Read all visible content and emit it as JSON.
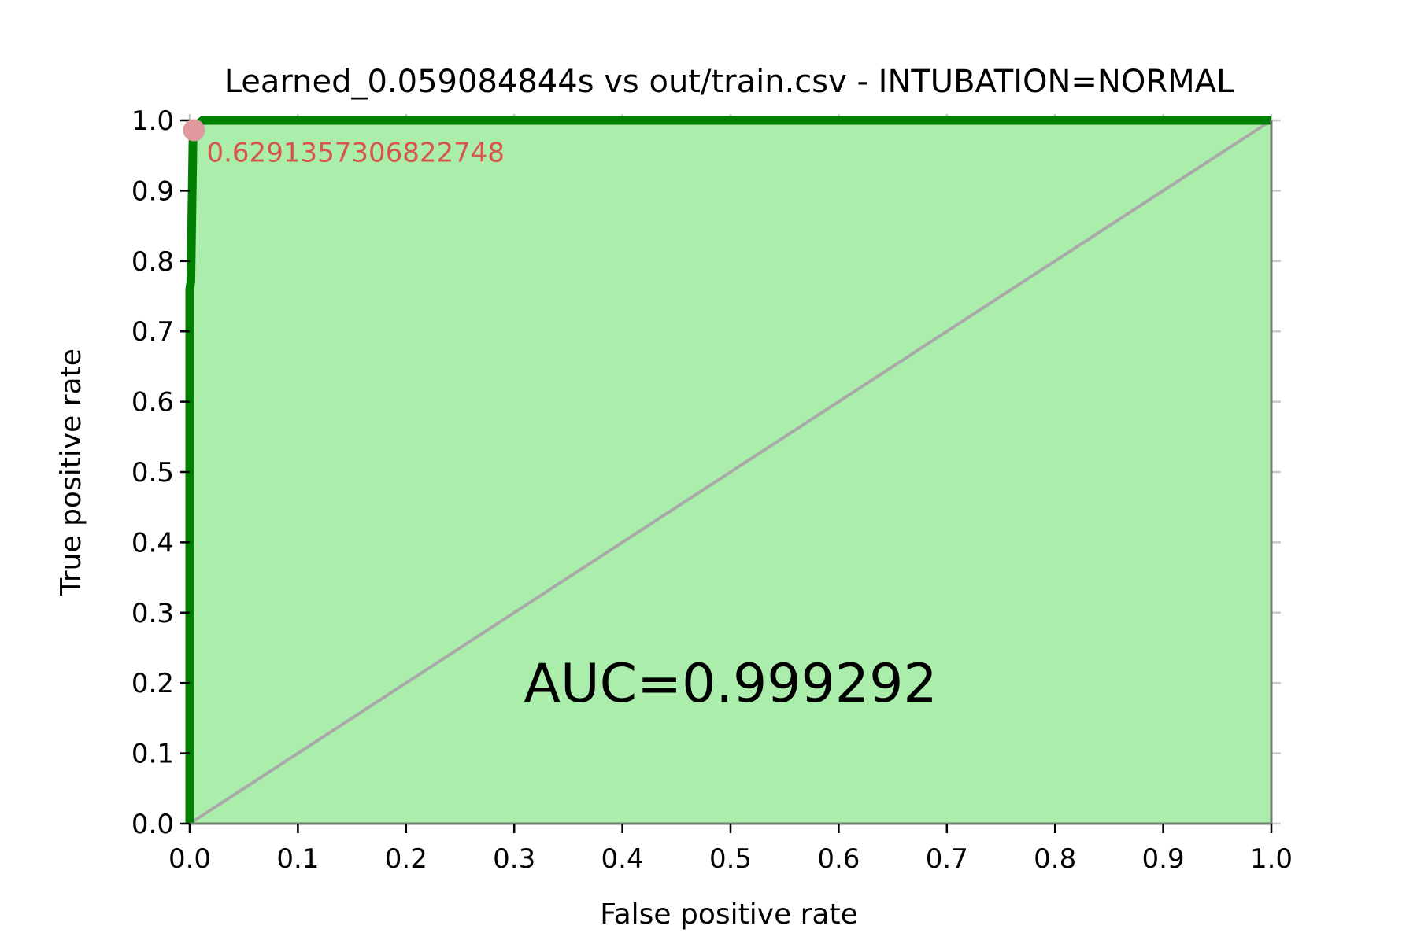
{
  "chart_data": {
    "type": "line",
    "title": "Learned_0.059084844s vs out/train.csv - INTUBATION=NORMAL",
    "xlabel": "False positive rate",
    "ylabel": "True positive rate",
    "xlim": [
      0,
      1
    ],
    "ylim": [
      0,
      1
    ],
    "grid": true,
    "x_ticks": [
      "0.0",
      "0.1",
      "0.2",
      "0.3",
      "0.4",
      "0.5",
      "0.6",
      "0.7",
      "0.8",
      "0.9",
      "1.0"
    ],
    "y_ticks": [
      "0.0",
      "0.1",
      "0.2",
      "0.3",
      "0.4",
      "0.5",
      "0.6",
      "0.7",
      "0.8",
      "0.9",
      "1.0"
    ],
    "series": [
      {
        "x": [
          0.0,
          0.0,
          0.001,
          0.003,
          0.004,
          0.004,
          0.012,
          0.015,
          1.0
        ],
        "y": [
          0.0,
          0.76,
          0.77,
          0.97,
          0.986,
          0.99,
          1.0,
          1.0,
          1.0
        ]
      }
    ],
    "diagonal": {
      "x": [
        0,
        1
      ],
      "y": [
        0,
        1
      ]
    },
    "marked_point": {
      "x": 0.004,
      "y": 0.986,
      "label": "0.6291357306822748"
    },
    "auc_text": "AUC=0.999292",
    "auc_position": {
      "x": 0.5,
      "y": 0.2
    },
    "colors": {
      "curve": "#008000",
      "fill": "#abedab",
      "diagonal": "#a9a9a9",
      "grid": "#c8c8c8",
      "point": "#e09a9e",
      "point_label": "#d9534f"
    }
  }
}
